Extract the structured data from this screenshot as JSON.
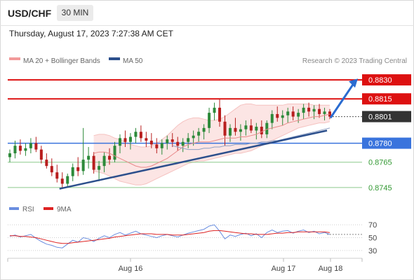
{
  "header": {
    "symbol": "USD/CHF",
    "timeframe": "30 MIN"
  },
  "timestamp": "Thursday, August 17, 2023 7:27:38 AM CET",
  "legend": {
    "ma_bb": "MA 20 + Bollinger Bands",
    "ma50": "MA 50",
    "copyright": "Research © 2023 Trading Central",
    "rsi": "RSI",
    "ma9": "9MA"
  },
  "colors": {
    "resistance": "#dd1111",
    "support_blue": "#3a74dd",
    "support_green": "#339933",
    "trend": "#2c4f8c",
    "bull": "#2d8a3a",
    "bear": "#b81e1e",
    "band_fill": "#fbe0df",
    "current_price_box": "#333333",
    "rsi_line": "#6a8ee0",
    "ma9_line": "#dd2222"
  },
  "chart_data": [
    {
      "type": "candlestick",
      "title": "USD/CHF 30 MIN",
      "x_ticks": [
        "Aug 16",
        "Aug 17",
        "Aug 18"
      ],
      "ylim": [
        0.8735,
        0.884
      ],
      "levels": [
        {
          "label": "0.8830",
          "value": 0.883,
          "kind": "resistance"
        },
        {
          "label": "0.8815",
          "value": 0.8815,
          "kind": "resistance"
        },
        {
          "label": "0.8801",
          "value": 0.8801,
          "kind": "current"
        },
        {
          "label": "0.8780",
          "value": 0.878,
          "kind": "pivot"
        },
        {
          "label": "0.8765",
          "value": 0.8765,
          "kind": "support"
        },
        {
          "label": "0.8745",
          "value": 0.8745,
          "kind": "support"
        }
      ],
      "ohlc": [
        [
          0.8769,
          0.8775,
          0.8765,
          0.8772
        ],
        [
          0.8772,
          0.8782,
          0.8768,
          0.8778
        ],
        [
          0.8778,
          0.8783,
          0.8771,
          0.8774
        ],
        [
          0.8774,
          0.878,
          0.877,
          0.8776
        ],
        [
          0.8776,
          0.8784,
          0.8772,
          0.878
        ],
        [
          0.878,
          0.8785,
          0.8773,
          0.8775
        ],
        [
          0.8775,
          0.8778,
          0.8764,
          0.8767
        ],
        [
          0.8767,
          0.8772,
          0.876,
          0.8762
        ],
        [
          0.8762,
          0.8768,
          0.8754,
          0.8757
        ],
        [
          0.8757,
          0.8763,
          0.8749,
          0.8752
        ],
        [
          0.8752,
          0.8757,
          0.8744,
          0.8748
        ],
        [
          0.8748,
          0.8756,
          0.8745,
          0.8754
        ],
        [
          0.8754,
          0.8764,
          0.875,
          0.8761
        ],
        [
          0.8761,
          0.8769,
          0.8754,
          0.8758
        ],
        [
          0.8758,
          0.8792,
          0.8755,
          0.8767
        ],
        [
          0.8767,
          0.8777,
          0.876,
          0.877
        ],
        [
          0.877,
          0.8773,
          0.8756,
          0.8759
        ],
        [
          0.8759,
          0.8766,
          0.875,
          0.8762
        ],
        [
          0.8762,
          0.8773,
          0.8757,
          0.877
        ],
        [
          0.877,
          0.8776,
          0.8763,
          0.8767
        ],
        [
          0.8767,
          0.8781,
          0.8765,
          0.8778
        ],
        [
          0.8778,
          0.8787,
          0.8772,
          0.8784
        ],
        [
          0.8784,
          0.879,
          0.8777,
          0.8781
        ],
        [
          0.8781,
          0.8788,
          0.8775,
          0.8785
        ],
        [
          0.8785,
          0.8792,
          0.878,
          0.8789
        ],
        [
          0.8789,
          0.8794,
          0.8781,
          0.8784
        ],
        [
          0.8784,
          0.8789,
          0.8777,
          0.8782
        ],
        [
          0.8782,
          0.8788,
          0.8776,
          0.8779
        ],
        [
          0.8779,
          0.8784,
          0.8772,
          0.8776
        ],
        [
          0.8776,
          0.8783,
          0.8771,
          0.878
        ],
        [
          0.878,
          0.8786,
          0.8775,
          0.8783
        ],
        [
          0.8783,
          0.8788,
          0.8777,
          0.8781
        ],
        [
          0.8781,
          0.8785,
          0.8774,
          0.8778
        ],
        [
          0.8778,
          0.8784,
          0.8773,
          0.8781
        ],
        [
          0.8781,
          0.8788,
          0.8776,
          0.8784
        ],
        [
          0.8784,
          0.879,
          0.8778,
          0.8786
        ],
        [
          0.8786,
          0.8792,
          0.8781,
          0.8789
        ],
        [
          0.8789,
          0.8795,
          0.8783,
          0.8792
        ],
        [
          0.8792,
          0.8808,
          0.8788,
          0.8804
        ],
        [
          0.8804,
          0.8812,
          0.8798,
          0.8808
        ],
        [
          0.8808,
          0.8815,
          0.8793,
          0.8797
        ],
        [
          0.8797,
          0.8802,
          0.8778,
          0.8786
        ],
        [
          0.8786,
          0.8795,
          0.8781,
          0.8792
        ],
        [
          0.8792,
          0.88,
          0.8786,
          0.8789
        ],
        [
          0.8789,
          0.8795,
          0.8782,
          0.8791
        ],
        [
          0.8791,
          0.8798,
          0.8786,
          0.8794
        ],
        [
          0.8794,
          0.8799,
          0.8788,
          0.879
        ],
        [
          0.879,
          0.8796,
          0.8783,
          0.8793
        ],
        [
          0.8793,
          0.8798,
          0.8784,
          0.8787
        ],
        [
          0.8787,
          0.8798,
          0.8784,
          0.8796
        ],
        [
          0.8796,
          0.8806,
          0.8791,
          0.8803
        ],
        [
          0.8803,
          0.8809,
          0.8797,
          0.88
        ],
        [
          0.88,
          0.8806,
          0.8794,
          0.8802
        ],
        [
          0.8802,
          0.8808,
          0.8796,
          0.8805
        ],
        [
          0.8805,
          0.8809,
          0.8798,
          0.8801
        ],
        [
          0.8801,
          0.8807,
          0.8796,
          0.8804
        ],
        [
          0.8804,
          0.8811,
          0.8799,
          0.8808
        ],
        [
          0.8808,
          0.8812,
          0.8801,
          0.8805
        ],
        [
          0.8805,
          0.881,
          0.8799,
          0.8807
        ],
        [
          0.8807,
          0.8811,
          0.88,
          0.8803
        ],
        [
          0.8803,
          0.8808,
          0.8798,
          0.8805
        ],
        [
          0.8805,
          0.8807,
          0.8799,
          0.8801
        ]
      ],
      "ma20": [
        0.8772,
        0.8773,
        0.8773,
        0.8772,
        0.877,
        0.8768,
        0.8766,
        0.8764,
        0.8762,
        0.8761,
        0.8761,
        0.8762,
        0.8764,
        0.8766,
        0.8768,
        0.8771,
        0.8774,
        0.8777,
        0.8779,
        0.878,
        0.8781,
        0.8781,
        0.8781,
        0.8782,
        0.8783,
        0.8784,
        0.8784,
        0.8784,
        0.8785,
        0.8785,
        0.8786,
        0.8787,
        0.8789,
        0.8791,
        0.8792,
        0.8793,
        0.8794,
        0.8796,
        0.8797,
        0.8798,
        0.8799,
        0.88,
        0.8801,
        0.8801,
        0.8802,
        0.8803
      ],
      "bb_upper": [
        0.8786,
        0.8787,
        0.8787,
        0.8786,
        0.8784,
        0.8783,
        0.8781,
        0.8779,
        0.8778,
        0.8777,
        0.8777,
        0.8778,
        0.878,
        0.8783,
        0.8786,
        0.879,
        0.8794,
        0.8797,
        0.8799,
        0.88,
        0.88,
        0.8799,
        0.8798,
        0.8798,
        0.8799,
        0.8801,
        0.8804,
        0.8807,
        0.881,
        0.8811,
        0.8811,
        0.881,
        0.881,
        0.881,
        0.881,
        0.881,
        0.881,
        0.8811,
        0.8811,
        0.8811,
        0.8811,
        0.8811,
        0.881,
        0.881,
        0.881,
        0.881
      ],
      "bb_lower": [
        0.8758,
        0.8757,
        0.8756,
        0.8754,
        0.8752,
        0.875,
        0.8749,
        0.8748,
        0.8747,
        0.8747,
        0.8748,
        0.875,
        0.8752,
        0.8754,
        0.8756,
        0.8758,
        0.876,
        0.8762,
        0.8764,
        0.8765,
        0.8766,
        0.8766,
        0.8767,
        0.8768,
        0.8769,
        0.877,
        0.8771,
        0.8772,
        0.8772,
        0.8773,
        0.8774,
        0.8776,
        0.8778,
        0.878,
        0.8782,
        0.8784,
        0.8786,
        0.8788,
        0.879,
        0.8792,
        0.8793,
        0.8794,
        0.8795,
        0.8796,
        0.8796,
        0.8797
      ],
      "ma50": [
        0.8778,
        0.8777,
        0.8776,
        0.8775,
        0.8775,
        0.8775,
        0.8776,
        0.8776,
        0.8777,
        0.8777,
        0.8778,
        0.8778,
        0.8779,
        0.8779,
        0.8779,
        0.878,
        0.878,
        0.8781,
        0.8781,
        0.8782,
        0.8782,
        0.8783,
        0.8784,
        0.8785,
        0.8786,
        0.8787,
        0.8788,
        0.8789,
        0.879,
        0.8791,
        0.8792
      ],
      "trendline": [
        [
          0.8744,
          0.879
        ]
      ],
      "projection": [
        0.88,
        0.8831
      ]
    },
    {
      "type": "line",
      "title": "RSI",
      "ylim": [
        20,
        80
      ],
      "y_ticks": [
        70,
        50,
        30
      ],
      "series": [
        {
          "name": "RSI",
          "values": [
            52,
            54,
            51,
            53,
            55,
            49,
            44,
            40,
            38,
            35,
            34,
            40,
            46,
            43,
            50,
            48,
            44,
            49,
            53,
            50,
            55,
            58,
            54,
            57,
            60,
            56,
            54,
            52,
            50,
            53,
            55,
            53,
            51,
            54,
            57,
            59,
            61,
            63,
            68,
            70,
            60,
            48,
            54,
            52,
            55,
            57,
            53,
            56,
            50,
            58,
            62,
            58,
            60,
            61,
            57,
            60,
            62,
            58,
            60,
            56,
            58,
            55
          ]
        },
        {
          "name": "9MA",
          "values": [
            53,
            53,
            52,
            52,
            51,
            50,
            48,
            46,
            44,
            42,
            41,
            41,
            42,
            43,
            44,
            45,
            46,
            47,
            48,
            49,
            51,
            52,
            53,
            54,
            55,
            56,
            56,
            56,
            55,
            55,
            55,
            54,
            54,
            54,
            55,
            56,
            57,
            58,
            60,
            61,
            61,
            60,
            59,
            58,
            57,
            56,
            56,
            55,
            55,
            55,
            56,
            57,
            57,
            58,
            58,
            59,
            59,
            59,
            59,
            59,
            59,
            58
          ]
        }
      ]
    }
  ]
}
